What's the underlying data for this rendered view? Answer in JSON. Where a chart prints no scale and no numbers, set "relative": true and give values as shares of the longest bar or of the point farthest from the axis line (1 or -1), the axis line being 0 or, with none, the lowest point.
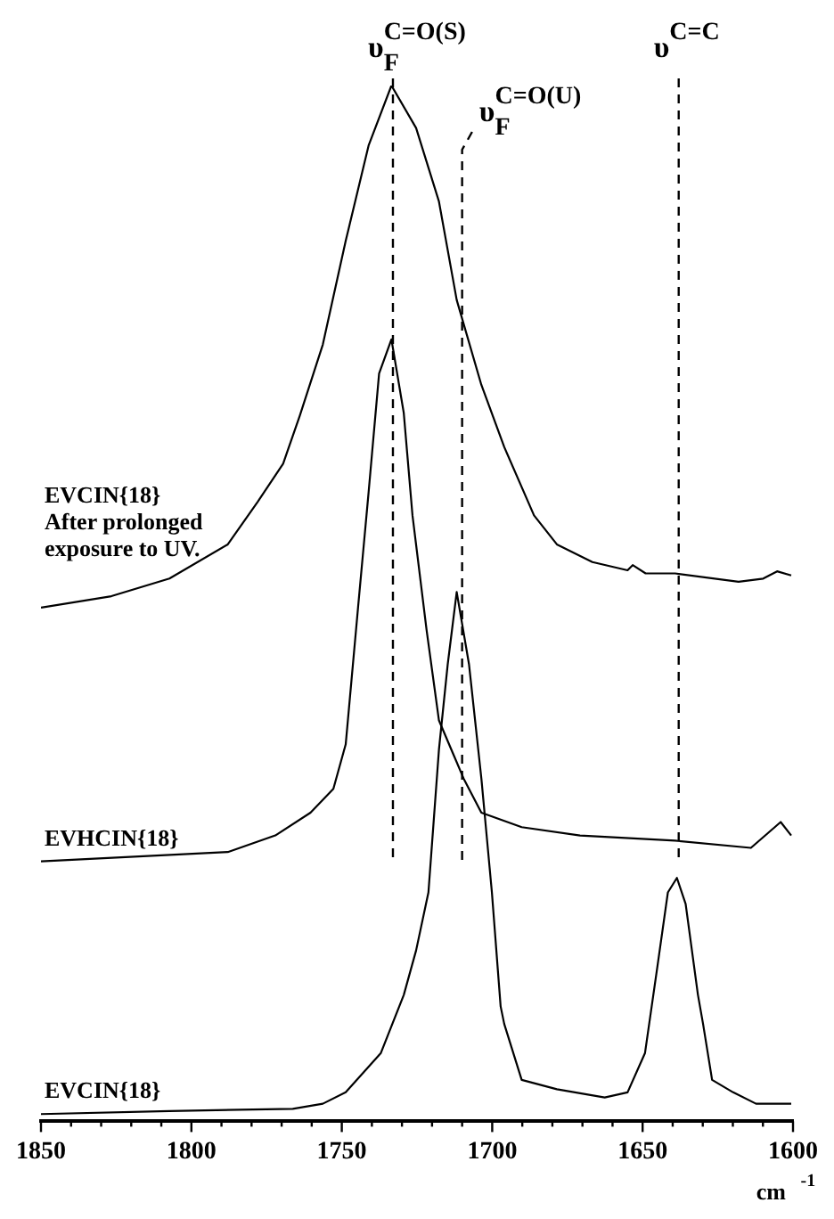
{
  "chart_data": {
    "type": "line",
    "relative": true,
    "xlabel": "cm$^{-1}$",
    "xlim": [
      1850,
      1600
    ],
    "xticks": [
      1850,
      {
        "value": 1840,
        "label": null
      },
      {
        "value": 1830,
        "label": null
      },
      {
        "value": 1820,
        "label": null
      },
      {
        "value": 1810,
        "label": null
      },
      1800,
      {
        "value": 1790,
        "label": null
      },
      {
        "value": 1780,
        "label": null
      },
      {
        "value": 1770,
        "label": null
      },
      {
        "value": 1760,
        "label": null
      },
      1750,
      {
        "value": 1740,
        "label": null
      },
      {
        "value": 1730,
        "label": null
      },
      {
        "value": 1720,
        "label": null
      },
      {
        "value": 1710,
        "label": null
      },
      1700,
      {
        "value": 1690,
        "label": null
      },
      {
        "value": 1680,
        "label": null
      },
      {
        "value": 1670,
        "label": null
      },
      {
        "value": 1660,
        "label": null
      },
      1650,
      {
        "value": 1640,
        "label": null
      },
      {
        "value": 1630,
        "label": null
      },
      {
        "value": 1620,
        "label": null
      },
      {
        "value": 1610,
        "label": null
      },
      1600
    ],
    "grid": false,
    "legend": false,
    "marker": "none",
    "line_style": "solid",
    "series": [
      {
        "name": "EVCIN{18}\nAfter prolonged\nexposure to UV.",
        "color": "#000000",
        "x": [
          1850,
          1826.6,
          1807.3,
          1787.9,
          1778,
          1769.5,
          1764,
          1756.3,
          1748.7,
          1741.1,
          1733.5,
          1725.3,
          1717.7,
          1711.8,
          1703.6,
          1696,
          1686.1,
          1678.5,
          1666.7,
          1655,
          1653.3,
          1649,
          1639.2,
          1618.1,
          1609.9,
          1605.3,
          1600.6
        ],
        "values": [
          0.496,
          0.507,
          0.524,
          0.557,
          0.598,
          0.635,
          0.681,
          0.75,
          0.85,
          0.942,
          1.0,
          0.959,
          0.888,
          0.793,
          0.711,
          0.651,
          0.585,
          0.557,
          0.54,
          0.532,
          0.537,
          0.529,
          0.529,
          0.521,
          0.524,
          0.531,
          0.527
        ]
      },
      {
        "name": "EVHCIN{18}",
        "color": "#000000",
        "x": [
          1850,
          1787.9,
          1772.1,
          1760.4,
          1752.8,
          1748.7,
          1744.6,
          1741.1,
          1737.6,
          1733.5,
          1729.4,
          1726.5,
          1721.8,
          1717.7,
          1709.5,
          1703.6,
          1690.2,
          1670.8,
          1639.2,
          1614,
          1604.1,
          1600.6
        ],
        "values": [
          0.251,
          0.26,
          0.276,
          0.298,
          0.321,
          0.364,
          0.496,
          0.607,
          0.722,
          0.755,
          0.684,
          0.585,
          0.474,
          0.387,
          0.331,
          0.298,
          0.284,
          0.276,
          0.271,
          0.264,
          0.289,
          0.276
        ]
      },
      {
        "name": "EVCIN{18}",
        "color": "#000000",
        "x": [
          1850,
          1807.3,
          1766.3,
          1756.3,
          1748.7,
          1737,
          1729.4,
          1725.3,
          1721.2,
          1717.7,
          1714.8,
          1711.8,
          1707.7,
          1703.6,
          1700.1,
          1697.2,
          1696,
          1690.2,
          1678.5,
          1662.6,
          1655,
          1649.2,
          1645.1,
          1641.6,
          1638.6,
          1635.7,
          1631.6,
          1629.9,
          1626.9,
          1619.9,
          1612.3,
          1600.6
        ],
        "values": [
          0.007,
          0.01,
          0.012,
          0.017,
          0.028,
          0.066,
          0.122,
          0.165,
          0.221,
          0.359,
          0.441,
          0.511,
          0.441,
          0.331,
          0.221,
          0.111,
          0.094,
          0.04,
          0.031,
          0.023,
          0.028,
          0.066,
          0.149,
          0.221,
          0.235,
          0.21,
          0.122,
          0.094,
          0.04,
          0.028,
          0.017,
          0.017
        ]
      }
    ],
    "ref_lines": [
      {
        "axis": "x",
        "value": 1733,
        "label": "υ$_{F}$$^{C=O(S)}$",
        "line_style": "dashed"
      },
      {
        "axis": "x",
        "value": 1710,
        "label": "υ$_{F}$$^{C=O(U)}$",
        "line_style": "dashed"
      },
      {
        "axis": "x",
        "value": 1638,
        "label": "υ$^{C=C}$",
        "line_style": "dashed"
      }
    ]
  }
}
